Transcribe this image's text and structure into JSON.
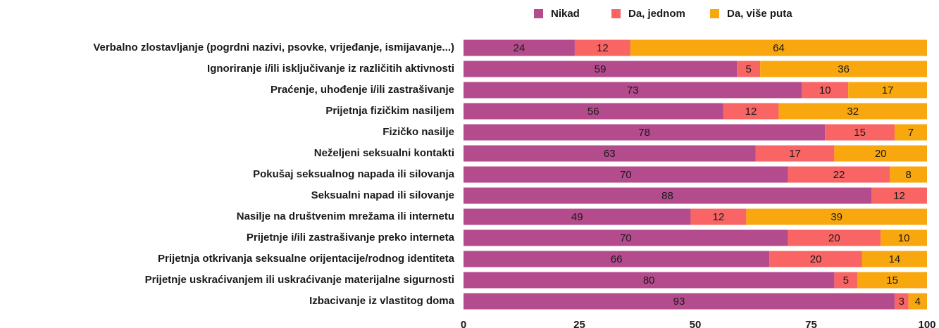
{
  "chart_data": {
    "type": "stacked_bar_horizontal",
    "categories": [
      "Verbalno zlostavljanje (pogrdni nazivi, psovke, vrijeđanje, ismijavanje...)",
      "Ignoriranje i/ili isključivanje iz različitih aktivnosti",
      "Praćenje, uhođenje i/ili zastrašivanje",
      "Prijetnja fizičkim nasiljem",
      "Fizičko nasilje",
      "Neželjeni seksualni kontakti",
      "Pokušaj seksualnog napada ili silovanja",
      "Seksualni napad ili silovanje",
      "Nasilje na društvenim mrežama ili internetu",
      "Prijetnje i/ili zastrašivanje preko interneta",
      "Prijetnja otkrivanja seksualne orijentacije/rodnog identiteta",
      "Prijetnje uskraćivanjem ili uskraćivanje materijalne sigurnosti",
      "Izbacivanje iz vlastitog doma"
    ],
    "series": [
      {
        "name": "Nikad",
        "color": "#b34b8d",
        "values": [
          24,
          59,
          73,
          56,
          78,
          63,
          70,
          88,
          49,
          70,
          66,
          80,
          93
        ]
      },
      {
        "name": "Da, jednom",
        "color": "#f96464",
        "values": [
          12,
          5,
          10,
          12,
          15,
          17,
          22,
          12,
          12,
          20,
          20,
          5,
          3
        ]
      },
      {
        "name": "Da, više puta",
        "color": "#f8a80e",
        "values": [
          64,
          36,
          17,
          32,
          7,
          20,
          8,
          null,
          39,
          10,
          14,
          15,
          4
        ]
      }
    ],
    "xlim": [
      0,
      100
    ],
    "xticks": [
      0,
      25,
      50,
      75,
      100
    ],
    "grid": false,
    "legend": "top"
  }
}
